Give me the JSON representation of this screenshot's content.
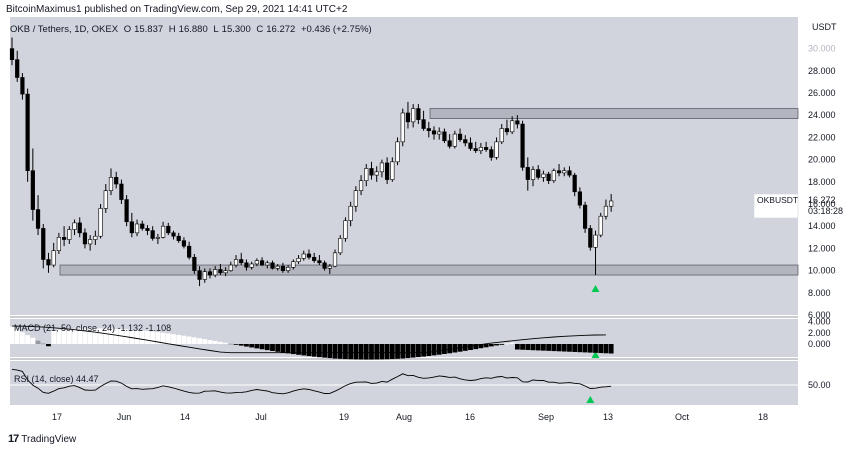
{
  "header": {
    "publisher_line": "BitcoinMaximus1 published on TradingView.com, Sep 29, 2021 14:41 UTC+2"
  },
  "symbol_bar": {
    "title": "OKB / Tethers, 1D, OKEX",
    "open_label": "O",
    "open": "15.837",
    "high_label": "H",
    "high": "16.880",
    "low_label": "L",
    "low": "15.300",
    "close_label": "C",
    "close": "16.272",
    "change": "+0.436 (+2.75%)"
  },
  "price_tag": {
    "symbol": "OKBUSDT",
    "price": "16.272",
    "countdown": "03:18:28"
  },
  "footer": {
    "brand": "TradingView",
    "logo_glyph": "17"
  },
  "colors": {
    "panel_bg": "#d1d4dc",
    "up": "#ffffff",
    "down": "#000000",
    "zone": "#b2b5be",
    "signal": "#00c853",
    "axis_text": "#131722"
  },
  "chart_data": [
    {
      "type": "candlestick",
      "currency": "USDT",
      "ylim": [
        6,
        30
      ],
      "y_ticks": [
        "6.000",
        "8.000",
        "10.000",
        "12.000",
        "14.000",
        "16.000",
        "18.000",
        "20.000",
        "22.000",
        "24.000",
        "26.000",
        "28.000",
        "30.000"
      ],
      "x_ticks": [
        "17",
        "Jun",
        "14",
        "Jul",
        "19",
        "Aug",
        "16",
        "Sep",
        "13",
        "Oct",
        "18"
      ],
      "start_date": "2021-05-12",
      "support_zone": [
        9.6,
        10.5
      ],
      "resistance_zone": [
        23.7,
        24.6
      ],
      "candles": [
        [
          30.0,
          31.0,
          28.5,
          29.0
        ],
        [
          29.0,
          29.8,
          27.0,
          27.4
        ],
        [
          27.4,
          27.8,
          25.4,
          25.9
        ],
        [
          25.9,
          26.4,
          18.0,
          19.0
        ],
        [
          19.0,
          21.0,
          14.5,
          15.5
        ],
        [
          15.5,
          16.8,
          13.2,
          13.8
        ],
        [
          13.8,
          14.2,
          10.2,
          11.0
        ],
        [
          11.0,
          11.6,
          9.8,
          10.5
        ],
        [
          10.5,
          12.5,
          10.3,
          11.8
        ],
        [
          11.8,
          13.4,
          11.5,
          13.0
        ],
        [
          13.0,
          14.0,
          12.2,
          12.8
        ],
        [
          12.8,
          14.0,
          12.4,
          13.7
        ],
        [
          13.7,
          14.6,
          13.2,
          14.3
        ],
        [
          14.3,
          14.8,
          13.0,
          13.4
        ],
        [
          13.4,
          13.8,
          12.0,
          12.4
        ],
        [
          12.4,
          13.2,
          11.8,
          12.8
        ],
        [
          12.8,
          13.6,
          12.3,
          13.1
        ],
        [
          13.1,
          16.0,
          12.9,
          15.6
        ],
        [
          15.6,
          17.8,
          15.2,
          17.2
        ],
        [
          17.2,
          19.2,
          16.8,
          18.4
        ],
        [
          18.4,
          18.9,
          17.4,
          17.8
        ],
        [
          17.8,
          18.2,
          16.0,
          16.4
        ],
        [
          16.4,
          16.8,
          14.0,
          14.4
        ],
        [
          14.4,
          15.2,
          13.0,
          13.4
        ],
        [
          13.4,
          14.6,
          13.1,
          14.2
        ],
        [
          14.2,
          14.5,
          13.6,
          13.8
        ],
        [
          13.8,
          14.1,
          13.2,
          13.6
        ],
        [
          13.6,
          14.0,
          12.7,
          12.9
        ],
        [
          12.9,
          13.3,
          12.4,
          13.0
        ],
        [
          13.0,
          14.4,
          12.9,
          14.0
        ],
        [
          14.0,
          14.3,
          13.2,
          13.4
        ],
        [
          13.4,
          13.6,
          12.8,
          13.1
        ],
        [
          13.1,
          13.4,
          12.5,
          12.7
        ],
        [
          12.7,
          13.0,
          12.0,
          12.2
        ],
        [
          12.2,
          12.6,
          11.0,
          11.2
        ],
        [
          11.2,
          11.5,
          9.7,
          10.0
        ],
        [
          10.0,
          10.4,
          8.6,
          9.2
        ],
        [
          9.2,
          10.2,
          8.9,
          9.9
        ],
        [
          9.9,
          10.2,
          9.3,
          9.6
        ],
        [
          9.6,
          10.4,
          9.4,
          10.1
        ],
        [
          10.1,
          10.6,
          9.6,
          9.8
        ],
        [
          9.8,
          10.3,
          9.5,
          10.0
        ],
        [
          10.0,
          10.8,
          9.9,
          10.5
        ],
        [
          10.5,
          11.4,
          10.3,
          11.0
        ],
        [
          11.0,
          11.6,
          10.5,
          10.7
        ],
        [
          10.7,
          11.0,
          10.0,
          10.3
        ],
        [
          10.3,
          10.8,
          10.1,
          10.6
        ],
        [
          10.6,
          11.1,
          10.4,
          10.9
        ],
        [
          10.9,
          11.2,
          10.4,
          10.5
        ],
        [
          10.5,
          10.9,
          10.2,
          10.7
        ],
        [
          10.7,
          10.9,
          10.1,
          10.2
        ],
        [
          10.2,
          10.6,
          10.0,
          10.4
        ],
        [
          10.4,
          10.7,
          9.8,
          10.0
        ],
        [
          10.0,
          10.5,
          9.8,
          10.3
        ],
        [
          10.3,
          11.0,
          10.1,
          10.8
        ],
        [
          10.8,
          11.4,
          10.6,
          11.1
        ],
        [
          11.1,
          11.8,
          10.9,
          11.5
        ],
        [
          11.5,
          11.9,
          11.0,
          11.2
        ],
        [
          11.2,
          11.6,
          10.7,
          10.9
        ],
        [
          10.9,
          11.4,
          10.5,
          10.7
        ],
        [
          10.7,
          10.9,
          10.0,
          10.2
        ],
        [
          10.2,
          10.6,
          9.7,
          10.4
        ],
        [
          10.4,
          11.9,
          10.3,
          11.6
        ],
        [
          11.6,
          13.2,
          11.4,
          12.9
        ],
        [
          12.9,
          14.8,
          12.6,
          14.5
        ],
        [
          14.5,
          16.2,
          14.0,
          15.8
        ],
        [
          15.8,
          17.6,
          15.3,
          17.2
        ],
        [
          17.2,
          18.6,
          16.8,
          18.1
        ],
        [
          18.1,
          19.6,
          17.6,
          19.2
        ],
        [
          19.2,
          19.8,
          18.2,
          18.6
        ],
        [
          18.6,
          19.4,
          18.0,
          18.9
        ],
        [
          18.9,
          20.0,
          18.4,
          19.7
        ],
        [
          19.7,
          20.2,
          17.8,
          18.2
        ],
        [
          18.2,
          20.2,
          18.0,
          19.8
        ],
        [
          19.8,
          22.0,
          19.5,
          21.6
        ],
        [
          21.6,
          24.6,
          21.2,
          24.2
        ],
        [
          24.2,
          25.2,
          22.8,
          23.4
        ],
        [
          23.4,
          25.0,
          22.9,
          24.6
        ],
        [
          24.6,
          25.0,
          23.2,
          23.6
        ],
        [
          23.6,
          24.4,
          22.6,
          22.8
        ],
        [
          22.8,
          23.4,
          22.0,
          22.6
        ],
        [
          22.6,
          23.0,
          21.8,
          22.3
        ],
        [
          22.3,
          22.9,
          21.8,
          22.5
        ],
        [
          22.5,
          22.8,
          21.5,
          21.7
        ],
        [
          21.7,
          22.3,
          21.0,
          21.2
        ],
        [
          21.2,
          22.6,
          21.0,
          22.3
        ],
        [
          22.3,
          22.8,
          21.6,
          21.8
        ],
        [
          21.8,
          22.2,
          21.2,
          21.5
        ],
        [
          21.5,
          22.0,
          20.8,
          21.0
        ],
        [
          21.0,
          21.6,
          20.6,
          20.8
        ],
        [
          20.8,
          21.5,
          20.5,
          21.1
        ],
        [
          21.1,
          21.6,
          20.7,
          20.9
        ],
        [
          20.9,
          21.2,
          19.9,
          20.2
        ],
        [
          20.2,
          22.0,
          20.0,
          21.6
        ],
        [
          21.6,
          23.2,
          21.4,
          22.8
        ],
        [
          22.8,
          23.6,
          22.2,
          22.5
        ],
        [
          22.5,
          23.9,
          22.3,
          23.5
        ],
        [
          23.5,
          24.0,
          22.8,
          23.2
        ],
        [
          23.2,
          23.5,
          19.0,
          19.3
        ],
        [
          19.3,
          20.2,
          17.2,
          18.2
        ],
        [
          18.2,
          19.4,
          17.6,
          19.1
        ],
        [
          19.1,
          19.5,
          18.2,
          18.4
        ],
        [
          18.4,
          19.0,
          18.0,
          18.7
        ],
        [
          18.7,
          18.9,
          17.8,
          18.1
        ],
        [
          18.1,
          19.2,
          17.9,
          19.0
        ],
        [
          19.0,
          19.6,
          18.5,
          18.8
        ],
        [
          18.8,
          19.3,
          18.5,
          19.0
        ],
        [
          19.0,
          19.4,
          18.4,
          18.6
        ],
        [
          18.6,
          18.8,
          16.7,
          17.1
        ],
        [
          17.1,
          17.5,
          15.6,
          15.9
        ],
        [
          15.9,
          16.2,
          13.4,
          13.8
        ],
        [
          13.8,
          14.1,
          11.8,
          12.1
        ],
        [
          12.1,
          13.6,
          9.6,
          13.2
        ],
        [
          13.2,
          15.2,
          13.0,
          14.9
        ],
        [
          14.9,
          16.4,
          14.6,
          15.8
        ],
        [
          15.8,
          16.9,
          15.3,
          16.27
        ]
      ],
      "signal_arrow_index": 112
    },
    {
      "type": "bar",
      "indicator": "MACD",
      "label": "MACD",
      "params": "(21, 50, close, 24)",
      "values_shown": [
        "-1.132",
        "-1.108"
      ],
      "ylim": [
        -1.6,
        4.3
      ],
      "y_ticks": [
        "0.000",
        "2.000",
        "4.000"
      ],
      "histogram_bounds": [
        3.1,
        -1.58
      ],
      "signal_line": [
        3.2,
        -1.0
      ],
      "signal_arrow_index": 112
    },
    {
      "type": "line",
      "indicator": "RSI",
      "label": "RSI",
      "params": "(14, close)",
      "value_shown": "44.47",
      "ylim": [
        31,
        67
      ],
      "y_ticks": [
        "50.00"
      ],
      "reference_line": 50,
      "signal_arrow_index": 111
    }
  ]
}
